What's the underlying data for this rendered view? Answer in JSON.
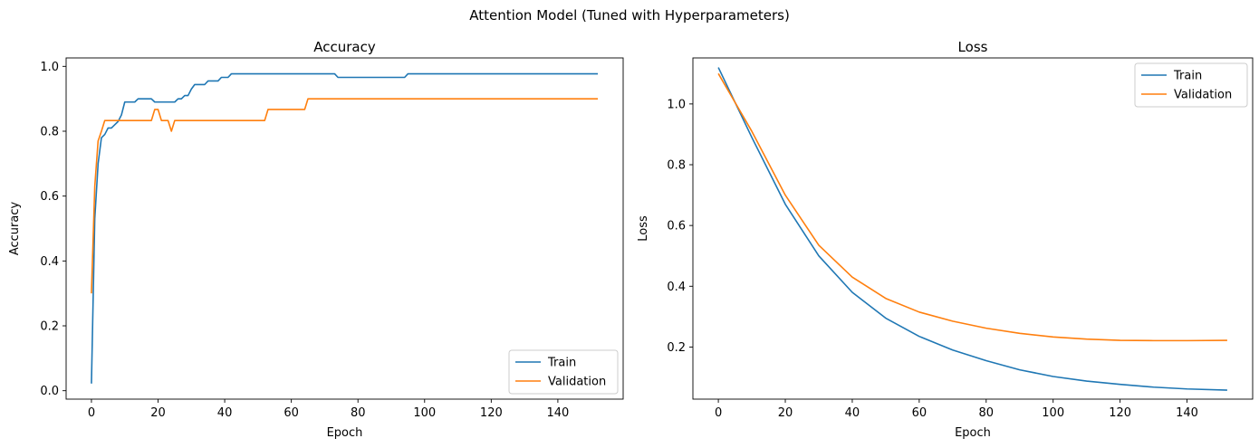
{
  "figure": {
    "suptitle": "Attention Model (Tuned with Hyperparameters)"
  },
  "colors": {
    "train": "#1f77b4",
    "validation": "#ff7f0e"
  },
  "chart_data": [
    {
      "type": "line",
      "title": "Accuracy",
      "xlabel": "Epoch",
      "ylabel": "Accuracy",
      "xlim": [
        -7.6,
        159.6
      ],
      "ylim": [
        -0.026,
        1.026
      ],
      "xticks": [
        0,
        20,
        40,
        60,
        80,
        100,
        120,
        140
      ],
      "yticks": [
        0.0,
        0.2,
        0.4,
        0.6,
        0.8,
        1.0
      ],
      "grid": false,
      "legend": "lower right",
      "series": [
        {
          "name": "Train",
          "color": "#1f77b4",
          "points": [
            [
              0,
              0.022
            ],
            [
              1,
              0.53
            ],
            [
              2,
              0.7
            ],
            [
              3,
              0.78
            ],
            [
              4,
              0.79
            ],
            [
              5,
              0.81
            ],
            [
              6,
              0.81
            ],
            [
              7,
              0.82
            ],
            [
              8,
              0.83
            ],
            [
              9,
              0.85
            ],
            [
              10,
              0.89
            ],
            [
              13,
              0.89
            ],
            [
              14,
              0.9
            ],
            [
              18,
              0.9
            ],
            [
              19,
              0.89
            ],
            [
              25,
              0.89
            ],
            [
              26,
              0.9
            ],
            [
              27,
              0.9
            ],
            [
              28,
              0.91
            ],
            [
              29,
              0.91
            ],
            [
              30,
              0.93
            ],
            [
              31,
              0.944
            ],
            [
              34,
              0.944
            ],
            [
              35,
              0.955
            ],
            [
              38,
              0.955
            ],
            [
              39,
              0.966
            ],
            [
              41,
              0.966
            ],
            [
              42,
              0.977
            ],
            [
              73,
              0.977
            ],
            [
              74,
              0.966
            ],
            [
              94,
              0.966
            ],
            [
              95,
              0.977
            ],
            [
              152,
              0.977
            ]
          ]
        },
        {
          "name": "Validation",
          "color": "#ff7f0e",
          "points": [
            [
              0,
              0.3
            ],
            [
              1,
              0.63
            ],
            [
              2,
              0.77
            ],
            [
              3,
              0.8
            ],
            [
              4,
              0.833
            ],
            [
              18,
              0.833
            ],
            [
              19,
              0.867
            ],
            [
              20,
              0.867
            ],
            [
              21,
              0.833
            ],
            [
              23,
              0.833
            ],
            [
              24,
              0.8
            ],
            [
              25,
              0.833
            ],
            [
              52,
              0.833
            ],
            [
              53,
              0.867
            ],
            [
              64,
              0.867
            ],
            [
              65,
              0.9
            ],
            [
              152,
              0.9
            ]
          ]
        }
      ]
    },
    {
      "type": "line",
      "title": "Loss",
      "xlabel": "Epoch",
      "ylabel": "Loss",
      "xlim": [
        -7.6,
        159.6
      ],
      "ylim": [
        0.0285,
        1.1515
      ],
      "xticks": [
        0,
        20,
        40,
        60,
        80,
        100,
        120,
        140
      ],
      "yticks": [
        0.2,
        0.4,
        0.6,
        0.8,
        1.0
      ],
      "grid": false,
      "legend": "upper right",
      "series": [
        {
          "name": "Train",
          "color": "#1f77b4",
          "points": [
            [
              0,
              1.12
            ],
            [
              10,
              0.89
            ],
            [
              20,
              0.67
            ],
            [
              30,
              0.5
            ],
            [
              40,
              0.38
            ],
            [
              50,
              0.295
            ],
            [
              60,
              0.235
            ],
            [
              70,
              0.19
            ],
            [
              80,
              0.155
            ],
            [
              90,
              0.125
            ],
            [
              100,
              0.103
            ],
            [
              110,
              0.088
            ],
            [
              120,
              0.077
            ],
            [
              130,
              0.068
            ],
            [
              140,
              0.062
            ],
            [
              152,
              0.058
            ]
          ]
        },
        {
          "name": "Validation",
          "color": "#ff7f0e",
          "points": [
            [
              0,
              1.1
            ],
            [
              10,
              0.91
            ],
            [
              20,
              0.7
            ],
            [
              30,
              0.535
            ],
            [
              40,
              0.43
            ],
            [
              50,
              0.36
            ],
            [
              60,
              0.315
            ],
            [
              70,
              0.285
            ],
            [
              80,
              0.262
            ],
            [
              90,
              0.245
            ],
            [
              100,
              0.233
            ],
            [
              110,
              0.226
            ],
            [
              120,
              0.222
            ],
            [
              130,
              0.221
            ],
            [
              140,
              0.221
            ],
            [
              152,
              0.222
            ]
          ]
        }
      ]
    }
  ]
}
